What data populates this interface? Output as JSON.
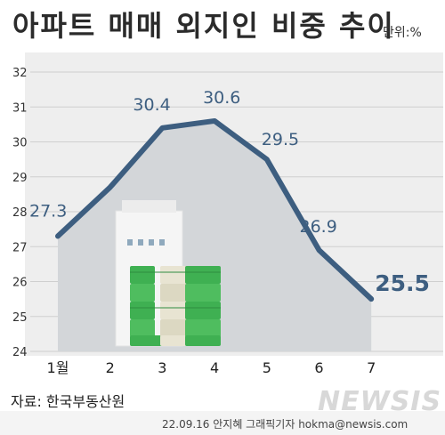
{
  "header": {
    "title": "아파트 매매 외지인 비중 추이",
    "unit": "단위:%"
  },
  "source": "자료: 한국부동산원",
  "footer": {
    "credit": "22.09.16 안지혜 그래픽기자 hokma@newsis.com",
    "logo": "NEWSIS"
  },
  "colors": {
    "line": "#3d5e80",
    "area": "#d3d6d9",
    "plot_bg": "#eeeeee",
    "label": "#3d5e80"
  },
  "chart_data": {
    "type": "line",
    "title": "아파트 매매 외지인 비중 추이",
    "xlabel": "",
    "ylabel": "",
    "unit": "%",
    "categories": [
      "1월",
      "2",
      "3",
      "4",
      "5",
      "6",
      "7"
    ],
    "series": [
      {
        "values": [
          27.3,
          28.7,
          30.4,
          30.6,
          29.5,
          26.9,
          25.5
        ]
      }
    ],
    "data_labels": [
      "27.3",
      "",
      "30.4",
      "30.6",
      "29.5",
      "26.9",
      "25.5"
    ],
    "yticks": [
      "24",
      "25",
      "26",
      "27",
      "28",
      "29",
      "30",
      "31",
      "32"
    ],
    "ylim": [
      24,
      32
    ],
    "grid": true,
    "legend": "none"
  }
}
